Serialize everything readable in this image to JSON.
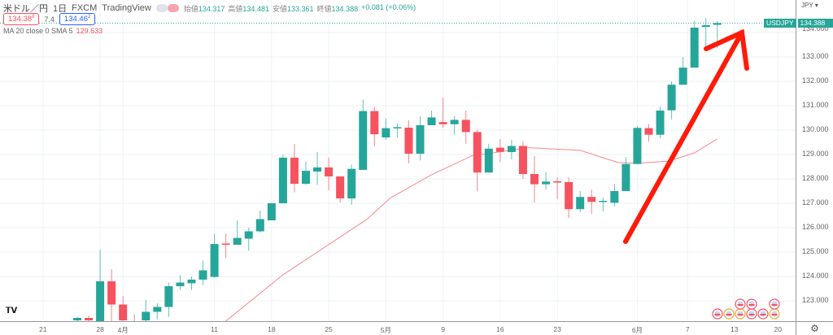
{
  "header": {
    "symbol": "米ドル／円",
    "interval": "1日",
    "exchange": "FXCM",
    "source": "TradingView",
    "open_label": "始値",
    "open": "134.317",
    "high_label": "高値",
    "high": "134.481",
    "low_label": "安値",
    "low": "133.361",
    "close_label": "終値",
    "close": "134.388",
    "change": "+0.081 (+0.06%)"
  },
  "quote": {
    "bid": "134.38",
    "bid_sup": "8",
    "spread": "7.4",
    "ask": "134.46",
    "ask_sup": "2"
  },
  "indicator": {
    "label": "MA 20 close 0 SMA 5",
    "value": "129.633"
  },
  "price_axis": {
    "currency": "JPY ▾",
    "ticks": [
      "134.000",
      "133.000",
      "132.000",
      "131.000",
      "130.000",
      "129.000",
      "128.000",
      "127.000",
      "126.000",
      "125.000",
      "124.000",
      "123.000"
    ],
    "current_symbol": "USDJPY",
    "current_price": "134.388"
  },
  "time_axis": {
    "labels": [
      {
        "text": "21",
        "index": -3
      },
      {
        "text": "28",
        "index": 2
      },
      {
        "text": "4月",
        "index": 4
      },
      {
        "text": "11",
        "index": 12
      },
      {
        "text": "18",
        "index": 17
      },
      {
        "text": "25",
        "index": 22
      },
      {
        "text": "5月",
        "index": 27
      },
      {
        "text": "9",
        "index": 32
      },
      {
        "text": "16",
        "index": 37
      },
      {
        "text": "23",
        "index": 42
      },
      {
        "text": "6月",
        "index": 49
      },
      {
        "text": "7",
        "index": 53.4
      },
      {
        "text": "13",
        "index": 57.5
      },
      {
        "text": "20",
        "index": 61.3
      }
    ]
  },
  "logo": "TV",
  "settings_icon": "gear-icon",
  "colors": {
    "up": "#26a69a",
    "down": "#f7525f",
    "ma": "#f7868f",
    "arrow": "#ff1a0a",
    "grid": "#eef3f6"
  },
  "chart_data": {
    "type": "candlestick",
    "ohlc": [
      [
        122.2,
        122.3,
        122.35,
        122.1
      ],
      [
        122.3,
        122.2,
        122.4,
        122.1
      ],
      [
        122.0,
        123.8,
        125.1,
        121.5
      ],
      [
        123.8,
        122.85,
        124.3,
        122.0
      ],
      [
        122.85,
        122.2,
        123.2,
        121.9
      ],
      [
        122.0,
        121.8,
        122.45,
        121.5
      ],
      [
        122.2,
        122.55,
        123.05,
        122.0
      ],
      [
        122.55,
        122.75,
        122.9,
        122.25
      ],
      [
        122.75,
        123.6,
        123.75,
        122.35
      ],
      [
        123.6,
        123.75,
        124.05,
        123.45
      ],
      [
        123.72,
        123.87,
        124.0,
        123.45
      ],
      [
        123.87,
        124.25,
        124.65,
        123.65
      ],
      [
        123.98,
        125.33,
        125.75,
        123.95
      ],
      [
        125.35,
        125.3,
        125.75,
        124.75
      ],
      [
        125.3,
        125.58,
        126.3,
        125.3
      ],
      [
        125.55,
        125.85,
        126.0,
        125.05
      ],
      [
        125.85,
        126.35,
        126.7,
        125.8
      ],
      [
        126.3,
        127.0,
        127.0,
        126.3
      ],
      [
        127.0,
        128.87,
        129.0,
        127.0
      ],
      [
        128.87,
        127.8,
        129.43,
        127.45
      ],
      [
        127.8,
        128.33,
        128.7,
        127.75
      ],
      [
        128.3,
        128.47,
        129.1,
        127.75
      ],
      [
        128.47,
        128.1,
        128.87,
        127.53
      ],
      [
        128.1,
        127.2,
        128.1,
        127.03
      ],
      [
        127.2,
        128.41,
        128.58,
        126.94
      ],
      [
        128.37,
        130.78,
        131.25,
        128.37
      ],
      [
        130.78,
        129.83,
        130.95,
        129.33
      ],
      [
        129.7,
        130.08,
        130.47,
        129.6
      ],
      [
        130.1,
        130.12,
        130.28,
        129.7
      ],
      [
        130.1,
        129.03,
        130.4,
        128.64
      ],
      [
        129.03,
        130.2,
        130.56,
        128.76
      ],
      [
        130.2,
        130.52,
        130.8,
        130.2
      ],
      [
        130.33,
        130.24,
        131.33,
        130.1
      ],
      [
        130.24,
        130.42,
        130.58,
        129.8
      ],
      [
        130.42,
        129.92,
        130.8,
        129.44
      ],
      [
        129.92,
        128.26,
        130.02,
        127.49
      ],
      [
        128.26,
        129.24,
        129.44,
        128.26
      ],
      [
        129.28,
        129.11,
        129.63,
        128.69
      ],
      [
        129.1,
        129.35,
        129.6,
        128.8
      ],
      [
        129.35,
        128.2,
        129.53,
        128.0
      ],
      [
        128.2,
        127.78,
        128.94,
        127.03
      ],
      [
        127.78,
        127.89,
        128.28,
        127.56
      ],
      [
        127.9,
        127.88,
        128.06,
        127.17
      ],
      [
        127.87,
        126.76,
        128.06,
        126.39
      ],
      [
        126.76,
        127.26,
        127.5,
        126.64
      ],
      [
        127.26,
        127.06,
        127.56,
        126.56
      ],
      [
        127.06,
        127.1,
        127.24,
        126.67
      ],
      [
        127.02,
        127.5,
        127.8,
        126.87
      ],
      [
        127.5,
        128.61,
        128.89,
        127.5
      ],
      [
        128.61,
        130.09,
        130.17,
        128.61
      ],
      [
        130.08,
        129.81,
        130.24,
        129.52
      ],
      [
        129.81,
        130.8,
        130.97,
        129.67
      ],
      [
        130.81,
        131.86,
        132.0,
        130.44
      ],
      [
        131.86,
        132.56,
        133.0,
        131.86
      ],
      [
        132.56,
        134.2,
        134.47,
        132.56
      ],
      [
        134.23,
        134.3,
        134.59,
        133.39
      ],
      [
        134.317,
        134.388,
        134.481,
        133.361
      ]
    ],
    "ma": [
      [
        13,
        122.17
      ],
      [
        18,
        124.07
      ],
      [
        20.3,
        124.78
      ],
      [
        25.3,
        126.33
      ],
      [
        27.4,
        127.22
      ],
      [
        31,
        128.17
      ],
      [
        34.5,
        128.94
      ],
      [
        39.5,
        129.28
      ],
      [
        44,
        129.17
      ],
      [
        47.3,
        128.67
      ],
      [
        49,
        128.64
      ],
      [
        51.8,
        128.73
      ],
      [
        54,
        129.07
      ],
      [
        56,
        129.64
      ]
    ],
    "ylim": [
      122.18,
      135.33
    ],
    "current_price": 134.388
  }
}
